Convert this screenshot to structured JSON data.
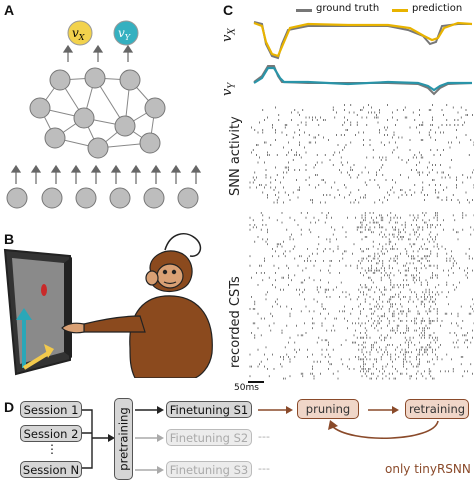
{
  "panels": {
    "a": "A",
    "b": "B",
    "c": "C",
    "d": "D"
  },
  "panel_a": {
    "output_labels": [
      {
        "text": "v",
        "sub": "X",
        "color": "#f2c94c"
      },
      {
        "text": "v",
        "sub": "Y",
        "color": "#2aa7b8"
      }
    ]
  },
  "panel_c": {
    "legend": [
      {
        "label": "ground truth",
        "color": "#777777"
      },
      {
        "label": "prediction",
        "color": "#e8b300"
      }
    ],
    "row_vx": {
      "text": "v",
      "sub": "X"
    },
    "row_vy": {
      "text": "v",
      "sub": "Y"
    },
    "snn_label": "SNN activity",
    "csts_label": "recorded CSTs",
    "scalebar": "50ms",
    "colors": {
      "vx_pred": "#e8b300",
      "vy_pred": "#2a94a8",
      "truth": "#777777"
    }
  },
  "panel_d": {
    "sessions": [
      "Session 1",
      "Session 2",
      "Session N"
    ],
    "sessions_ellipsis": "⋮",
    "pretraining": "pretraining",
    "finetuning": [
      "Finetuning S1",
      "Finetuning S2",
      "Finetuning S3"
    ],
    "trail": "---",
    "pruning": "pruning",
    "retraining": "retraining",
    "note": "only tinyRSNN",
    "colors": {
      "brown": "#8a4a2a"
    }
  }
}
